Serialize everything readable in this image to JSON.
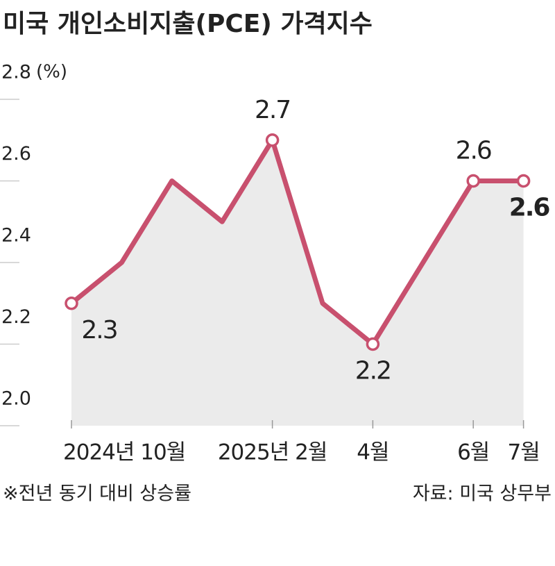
{
  "chart_data": {
    "type": "line",
    "title": "미국 개인소비지출(PCE) 가격지수",
    "y_unit": "(%)",
    "categories": [
      "2024년 10월",
      null,
      null,
      null,
      "2025년 2월",
      null,
      "4월",
      null,
      "6월",
      "7월"
    ],
    "values": [
      2.3,
      2.4,
      2.6,
      2.5,
      2.7,
      2.3,
      2.2,
      2.4,
      2.6,
      2.6
    ],
    "value_labels": [
      "2.3",
      null,
      null,
      null,
      "2.7",
      null,
      "2.2",
      null,
      "2.6",
      "2.6"
    ],
    "color": "#c8506e",
    "area_color": "#ebebeb",
    "ylim": [
      2.0,
      2.8
    ],
    "yticks": [
      {
        "value": 2.0,
        "label": "2.0"
      },
      2.2,
      2.4,
      2.6,
      2.8
    ],
    "note": "※전년 동기 대비 상승률",
    "source": "자료: 미국 상무부"
  }
}
